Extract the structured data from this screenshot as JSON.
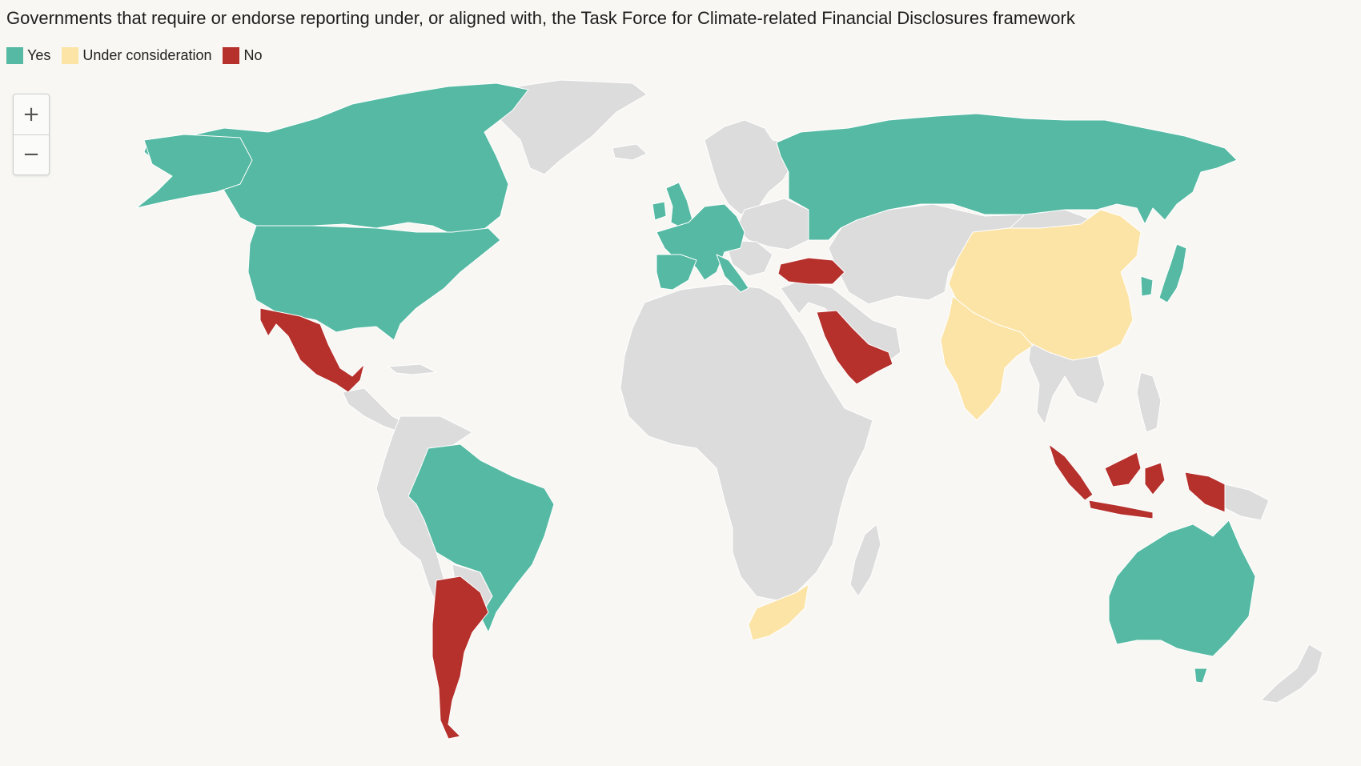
{
  "title": "Governments that require or endorse reporting under, or aligned with, the Task Force for Climate-related Financial Disclosures framework",
  "legend": [
    {
      "label": "Yes",
      "color": "#55b9a3"
    },
    {
      "label": "Under consideration",
      "color": "#fce4a6"
    },
    {
      "label": "No",
      "color": "#b6302c"
    }
  ],
  "no_data_color": "#dcdcdc",
  "zoom": {
    "in_label": "+",
    "out_label": "−"
  },
  "map_data": {
    "type": "choropleth",
    "categories": [
      "Yes",
      "Under consideration",
      "No"
    ],
    "regions": [
      {
        "name": "Canada",
        "status": "Yes"
      },
      {
        "name": "United States",
        "status": "Yes"
      },
      {
        "name": "Brazil",
        "status": "Yes"
      },
      {
        "name": "United Kingdom",
        "status": "Yes"
      },
      {
        "name": "Ireland",
        "status": "Yes"
      },
      {
        "name": "France",
        "status": "Yes"
      },
      {
        "name": "Germany",
        "status": "Yes"
      },
      {
        "name": "Spain",
        "status": "Yes"
      },
      {
        "name": "Portugal",
        "status": "Yes"
      },
      {
        "name": "Italy",
        "status": "Yes"
      },
      {
        "name": "Netherlands",
        "status": "Yes"
      },
      {
        "name": "Belgium",
        "status": "Yes"
      },
      {
        "name": "Switzerland",
        "status": "Yes"
      },
      {
        "name": "Austria",
        "status": "Yes"
      },
      {
        "name": "Russia",
        "status": "Yes"
      },
      {
        "name": "Japan",
        "status": "Yes"
      },
      {
        "name": "South Korea",
        "status": "Yes"
      },
      {
        "name": "Australia",
        "status": "Yes"
      },
      {
        "name": "China",
        "status": "Under consideration"
      },
      {
        "name": "India",
        "status": "Under consideration"
      },
      {
        "name": "South Africa",
        "status": "Under consideration"
      },
      {
        "name": "Mexico",
        "status": "No"
      },
      {
        "name": "Argentina",
        "status": "No"
      },
      {
        "name": "Turkey",
        "status": "No"
      },
      {
        "name": "Saudi Arabia",
        "status": "No"
      },
      {
        "name": "Indonesia",
        "status": "No"
      }
    ]
  }
}
